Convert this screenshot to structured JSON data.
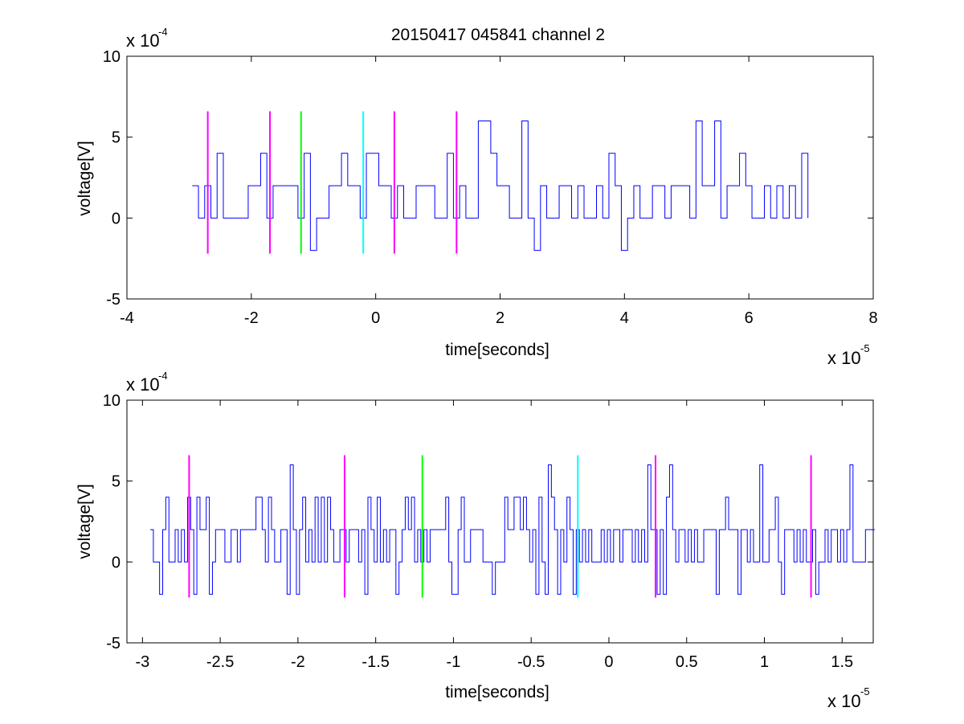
{
  "title": "20150417 045841 channel 2",
  "colors": {
    "signal": "#0000ff",
    "marker_magenta": "#ff00ff",
    "marker_green": "#00ff00",
    "marker_cyan": "#00ffff",
    "axes": "#000000"
  },
  "signal_levels_1e-4": [
    -2,
    0,
    2,
    4,
    6
  ],
  "chart_data": [
    {
      "type": "line",
      "title": "20150417 045841 channel 2",
      "xlabel": "time[seconds]",
      "ylabel": "voltage[V]",
      "x_multiplier": "x 10",
      "x_exponent": "-5",
      "y_multiplier": "x 10",
      "y_exponent": "-4",
      "xlim": [
        -4,
        8
      ],
      "ylim": [
        -5,
        10
      ],
      "xticks": [
        -4,
        -2,
        0,
        2,
        4,
        6,
        8
      ],
      "xtick_labels": [
        "-4",
        "-2",
        "0",
        "2",
        "4",
        "6",
        "8"
      ],
      "yticks": [
        -5,
        0,
        5,
        10
      ],
      "ytick_labels": [
        "-5",
        "0",
        "5",
        "10"
      ],
      "grid": false,
      "series": [
        {
          "sample_interval": 0.1,
          "x_start": -2.95,
          "x_end": 7.0,
          "y_min": -2,
          "y_max": 6,
          "dominant_levels": [
            0,
            2
          ]
        }
      ],
      "markers": [
        {
          "x": -2.7,
          "y_range": [
            -2.2,
            6.6
          ],
          "color": "magenta"
        },
        {
          "x": -1.7,
          "y_range": [
            -2.2,
            6.6
          ],
          "color": "magenta"
        },
        {
          "x": -1.2,
          "y_range": [
            -2.2,
            6.6
          ],
          "color": "green"
        },
        {
          "x": -0.2,
          "y_range": [
            -2.2,
            6.6
          ],
          "color": "cyan"
        },
        {
          "x": 0.3,
          "y_range": [
            -2.2,
            6.6
          ],
          "color": "magenta"
        },
        {
          "x": 1.3,
          "y_range": [
            -2.2,
            6.6
          ],
          "color": "magenta"
        }
      ]
    },
    {
      "type": "line",
      "title": "",
      "xlabel": "time[seconds]",
      "ylabel": "voltage[V]",
      "x_multiplier": "x 10",
      "x_exponent": "-5",
      "y_multiplier": "x 10",
      "y_exponent": "-4",
      "xlim": [
        -3.1,
        1.7
      ],
      "ylim": [
        -5,
        10
      ],
      "xticks": [
        -3,
        -2.5,
        -2,
        -1.5,
        -1,
        -0.5,
        0,
        0.5,
        1,
        1.5
      ],
      "xtick_labels": [
        "-3",
        "-2.5",
        "-2",
        "-1.5",
        "-1",
        "-0.5",
        "0",
        "0.5",
        "1",
        "1.5"
      ],
      "yticks": [
        -5,
        0,
        5,
        10
      ],
      "ytick_labels": [
        "-5",
        "0",
        "5",
        "10"
      ],
      "grid": false,
      "series": [
        {
          "sample_interval": 0.02,
          "x_start": -2.95,
          "x_end": 1.7,
          "y_min": -2,
          "y_max": 6,
          "dominant_levels": [
            0,
            2
          ]
        }
      ],
      "markers": [
        {
          "x": -2.7,
          "y_range": [
            -2.2,
            6.6
          ],
          "color": "magenta"
        },
        {
          "x": -1.7,
          "y_range": [
            -2.2,
            6.6
          ],
          "color": "magenta"
        },
        {
          "x": -1.2,
          "y_range": [
            -2.2,
            6.6
          ],
          "color": "green"
        },
        {
          "x": -0.2,
          "y_range": [
            -2.2,
            6.6
          ],
          "color": "cyan"
        },
        {
          "x": 0.3,
          "y_range": [
            -2.2,
            6.6
          ],
          "color": "magenta"
        },
        {
          "x": 1.3,
          "y_range": [
            -2.2,
            6.6
          ],
          "color": "magenta"
        }
      ]
    }
  ]
}
